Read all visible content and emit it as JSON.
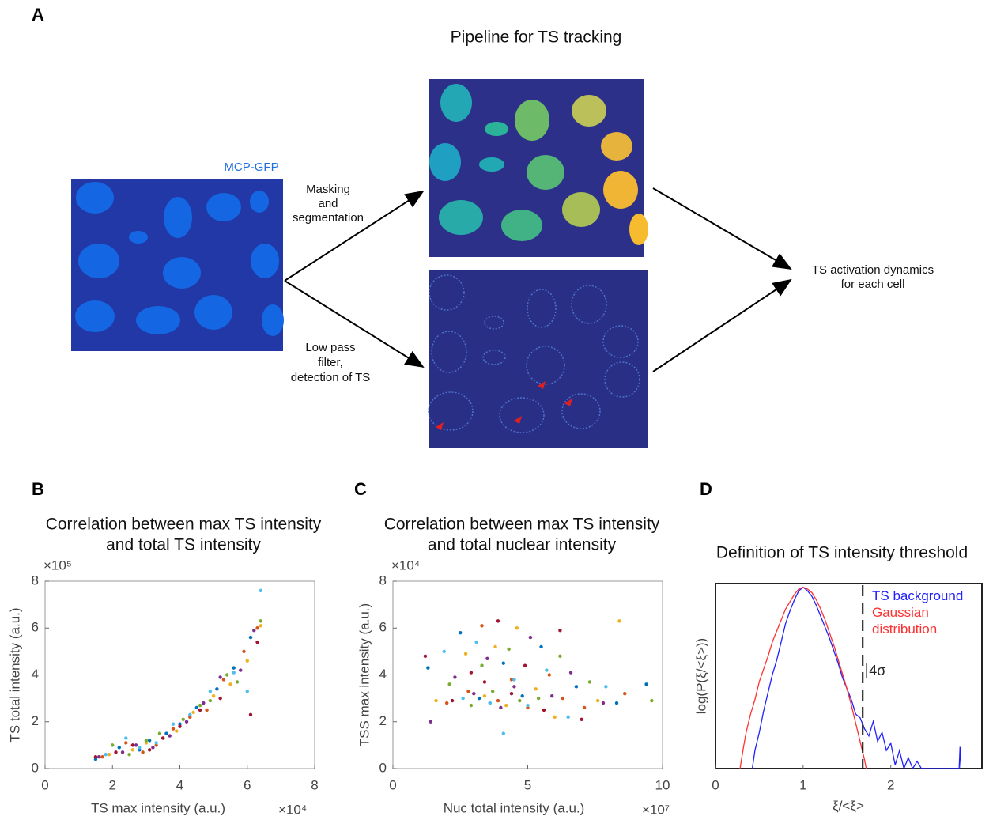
{
  "diagram": {
    "panel": "A",
    "title": "Pipeline for TS tracking",
    "image_label": "MCP-GFP",
    "steps": [
      [
        "Masking",
        "and",
        "segmentation"
      ],
      [
        "Low pass",
        "filter,",
        "detection of TS"
      ]
    ],
    "output": [
      "TS activation dynamics",
      "for each cell"
    ]
  },
  "chart_data": [
    {
      "type": "scatter",
      "panel": "B",
      "title": [
        "Correlation between max TS intensity",
        "and total TS intensity"
      ],
      "x_label": "TS max intensity  (a.u.)",
      "y_label": "TS total intensity (a.u.)",
      "x_multiplier": "×10⁴",
      "y_multiplier": "×10⁵",
      "xlim": [
        0,
        8
      ],
      "ylim": [
        0,
        8
      ],
      "xticks": [
        0,
        2,
        4,
        6,
        8
      ],
      "yticks": [
        0,
        2,
        4,
        6,
        8
      ],
      "series": [
        {
          "color": "#0072bd",
          "x": [
            1.5,
            2.2,
            2.8,
            3.1,
            3.6,
            4.0,
            4.5,
            5.1,
            5.6,
            6.1
          ],
          "y": [
            0.4,
            0.9,
            0.8,
            1.2,
            1.5,
            1.9,
            2.6,
            3.4,
            4.3,
            5.6
          ]
        },
        {
          "color": "#d95319",
          "x": [
            1.7,
            2.4,
            2.9,
            3.3,
            3.8,
            4.3,
            4.8,
            5.3,
            5.9,
            6.3
          ],
          "y": [
            0.5,
            1.1,
            0.7,
            1.0,
            1.7,
            2.2,
            2.5,
            3.8,
            5.0,
            6.0
          ]
        },
        {
          "color": "#edb120",
          "x": [
            1.9,
            2.6,
            3.0,
            3.5,
            3.9,
            4.4,
            5.0,
            5.5,
            6.0,
            6.4
          ],
          "y": [
            0.6,
            0.8,
            1.1,
            1.3,
            1.6,
            2.4,
            3.1,
            3.6,
            4.6,
            6.1
          ]
        },
        {
          "color": "#7e2f8e",
          "x": [
            1.6,
            2.3,
            2.7,
            3.2,
            3.7,
            4.2,
            4.7,
            5.2,
            5.8,
            6.2
          ],
          "y": [
            0.5,
            0.7,
            1.0,
            0.9,
            1.4,
            2.0,
            2.8,
            3.9,
            4.2,
            5.9
          ]
        },
        {
          "color": "#77ac30",
          "x": [
            2.0,
            2.5,
            3.0,
            3.4,
            4.1,
            4.6,
            4.9,
            5.4,
            5.7,
            6.4
          ],
          "y": [
            1.0,
            0.6,
            1.2,
            1.5,
            2.1,
            2.7,
            2.9,
            4.0,
            3.7,
            6.3
          ]
        },
        {
          "color": "#4dbeee",
          "x": [
            1.8,
            2.4,
            2.8,
            3.3,
            3.8,
            4.3,
            4.9,
            5.6,
            6.0,
            6.4
          ],
          "y": [
            0.6,
            1.3,
            0.9,
            1.1,
            1.9,
            2.3,
            3.3,
            4.1,
            3.3,
            7.6
          ]
        },
        {
          "color": "#a2142f",
          "x": [
            1.5,
            2.1,
            2.6,
            3.1,
            3.5,
            4.0,
            4.6,
            5.2,
            6.1,
            6.3
          ],
          "y": [
            0.5,
            0.7,
            1.0,
            0.8,
            1.3,
            1.8,
            2.5,
            3.0,
            2.3,
            5.4
          ]
        }
      ]
    },
    {
      "type": "scatter",
      "panel": "C",
      "title": [
        "Correlation between max TS intensity",
        "and total nuclear intensity"
      ],
      "x_label": "Nuc total intensity (a.u.)",
      "y_label": "TSS max intensity (a.u.)",
      "x_multiplier": "×10⁷",
      "y_multiplier": "×10⁴",
      "xlim": [
        0,
        10
      ],
      "ylim": [
        0,
        8
      ],
      "xticks": [
        0,
        5,
        10
      ],
      "yticks": [
        0,
        2,
        4,
        6,
        8
      ],
      "series": [
        {
          "color": "#0072bd",
          "x": [
            1.3,
            2.5,
            3.2,
            3.6,
            4.1,
            4.8,
            5.5,
            6.8,
            8.3,
            9.4
          ],
          "y": [
            4.3,
            5.8,
            3.0,
            2.8,
            4.5,
            3.1,
            5.2,
            3.5,
            2.8,
            3.6
          ]
        },
        {
          "color": "#d95319",
          "x": [
            2.0,
            2.8,
            3.3,
            3.9,
            4.4,
            5.0,
            5.8,
            6.3,
            7.1,
            8.6
          ],
          "y": [
            2.8,
            3.3,
            6.1,
            2.9,
            3.8,
            2.6,
            4.0,
            3.0,
            2.6,
            3.2
          ]
        },
        {
          "color": "#edb120",
          "x": [
            1.6,
            2.7,
            3.4,
            3.8,
            4.2,
            4.6,
            5.3,
            6.0,
            7.6,
            8.4
          ],
          "y": [
            2.9,
            4.9,
            3.1,
            5.2,
            2.7,
            6.0,
            3.4,
            2.2,
            2.9,
            6.3
          ]
        },
        {
          "color": "#7e2f8e",
          "x": [
            1.4,
            2.3,
            3.0,
            3.5,
            4.0,
            4.5,
            5.1,
            5.9,
            6.6,
            7.8
          ],
          "y": [
            2.0,
            3.9,
            3.2,
            4.7,
            2.6,
            3.5,
            5.6,
            3.1,
            4.1,
            2.8
          ]
        },
        {
          "color": "#77ac30",
          "x": [
            2.1,
            2.9,
            3.3,
            3.7,
            4.3,
            4.7,
            5.4,
            6.2,
            7.3,
            9.6
          ],
          "y": [
            3.6,
            2.7,
            4.4,
            3.3,
            5.1,
            2.9,
            3.0,
            4.8,
            3.7,
            2.9
          ]
        },
        {
          "color": "#4dbeee",
          "x": [
            1.9,
            2.6,
            3.1,
            3.6,
            4.1,
            4.5,
            5.0,
            5.7,
            6.5,
            7.9
          ],
          "y": [
            5.0,
            3.0,
            5.4,
            2.8,
            1.5,
            3.8,
            2.7,
            4.2,
            2.2,
            3.5
          ]
        },
        {
          "color": "#a2142f",
          "x": [
            1.2,
            2.2,
            2.9,
            3.4,
            3.9,
            4.4,
            4.9,
            5.6,
            6.2,
            7.0
          ],
          "y": [
            4.8,
            2.9,
            4.1,
            3.7,
            6.3,
            3.2,
            4.4,
            2.5,
            5.9,
            2.1
          ]
        }
      ]
    },
    {
      "type": "line",
      "panel": "D",
      "title": [
        "Definition of TS intensity threshold"
      ],
      "x_label": "ξ/<ξ>",
      "y_label": "log(P(ξ/<ξ>))",
      "xlim": [
        0,
        3.04
      ],
      "ylim": [
        0,
        1.02
      ],
      "xticks": [
        0,
        1,
        2
      ],
      "threshold": {
        "value": 1.68,
        "label": "4σ"
      },
      "series": [
        {
          "name": "TS background",
          "color": "#2020ff",
          "x": [
            0.42,
            0.45,
            0.5,
            0.55,
            0.6,
            0.65,
            0.7,
            0.75,
            0.8,
            0.85,
            0.9,
            0.95,
            1.0,
            1.05,
            1.1,
            1.15,
            1.2,
            1.25,
            1.3,
            1.35,
            1.4,
            1.45,
            1.5,
            1.55,
            1.6,
            1.65,
            1.7,
            1.75,
            1.8,
            1.85,
            1.9,
            1.95,
            2.0,
            2.05,
            2.1,
            2.15,
            2.2,
            2.25,
            2.3,
            2.35,
            2.78,
            2.79,
            2.8
          ],
          "y": [
            0,
            0.1,
            0.2,
            0.32,
            0.42,
            0.52,
            0.6,
            0.7,
            0.8,
            0.87,
            0.93,
            0.98,
            1.0,
            0.98,
            0.95,
            0.9,
            0.84,
            0.78,
            0.72,
            0.65,
            0.58,
            0.5,
            0.44,
            0.38,
            0.3,
            0.28,
            0.22,
            0.18,
            0.26,
            0.15,
            0.2,
            0.1,
            0.14,
            0.02,
            0.1,
            0,
            0.06,
            0,
            0.04,
            0,
            0,
            0.12,
            0
          ]
        },
        {
          "name": "Gaussian distribution",
          "color": "#ff3030",
          "x": [
            0.28,
            0.32,
            0.35,
            0.4,
            0.45,
            0.5,
            0.55,
            0.6,
            0.65,
            0.7,
            0.75,
            0.8,
            0.85,
            0.9,
            0.95,
            1.0,
            1.05,
            1.1,
            1.15,
            1.2,
            1.25,
            1.3,
            1.35,
            1.4,
            1.45,
            1.5,
            1.55,
            1.6,
            1.65,
            1.7,
            1.72
          ],
          "y": [
            0,
            0.12,
            0.2,
            0.3,
            0.38,
            0.48,
            0.55,
            0.62,
            0.7,
            0.76,
            0.82,
            0.88,
            0.92,
            0.96,
            0.99,
            1.0,
            0.99,
            0.97,
            0.93,
            0.88,
            0.82,
            0.75,
            0.68,
            0.6,
            0.52,
            0.44,
            0.35,
            0.25,
            0.15,
            0.05,
            0
          ]
        }
      ]
    }
  ]
}
